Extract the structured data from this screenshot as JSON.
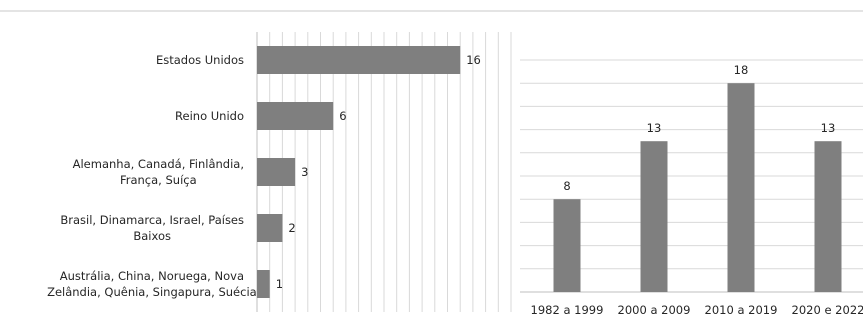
{
  "chart_data": [
    {
      "type": "bar",
      "orientation": "horizontal",
      "categories": [
        [
          "Estados Unidos"
        ],
        [
          "Reino Unido"
        ],
        [
          "Alemanha, Canadá, Finlândia,",
          "França, Suíça"
        ],
        [
          "Brasil, Dinamarca, Israel, Países",
          "Baixos"
        ],
        [
          "Austrália, China, Noruega, Nova",
          "Zelândia, Quênia, Singapura, Suécia"
        ]
      ],
      "values": [
        16,
        6,
        3,
        2,
        1
      ],
      "data_labels": [
        "16",
        "6",
        "3",
        "2",
        "1"
      ],
      "xlim": [
        0,
        20
      ],
      "grid": "vertical",
      "bar_color": "#7f7f7f"
    },
    {
      "type": "bar",
      "orientation": "vertical",
      "categories": [
        "1982 a 1999",
        "2000 a 2009",
        "2010 a 2019",
        "2020 e 2022"
      ],
      "values": [
        8,
        13,
        18,
        13
      ],
      "data_labels": [
        "8",
        "13",
        "18",
        "13"
      ],
      "ylim": [
        0,
        20
      ],
      "grid": "horizontal",
      "bar_color": "#7f7f7f"
    }
  ]
}
